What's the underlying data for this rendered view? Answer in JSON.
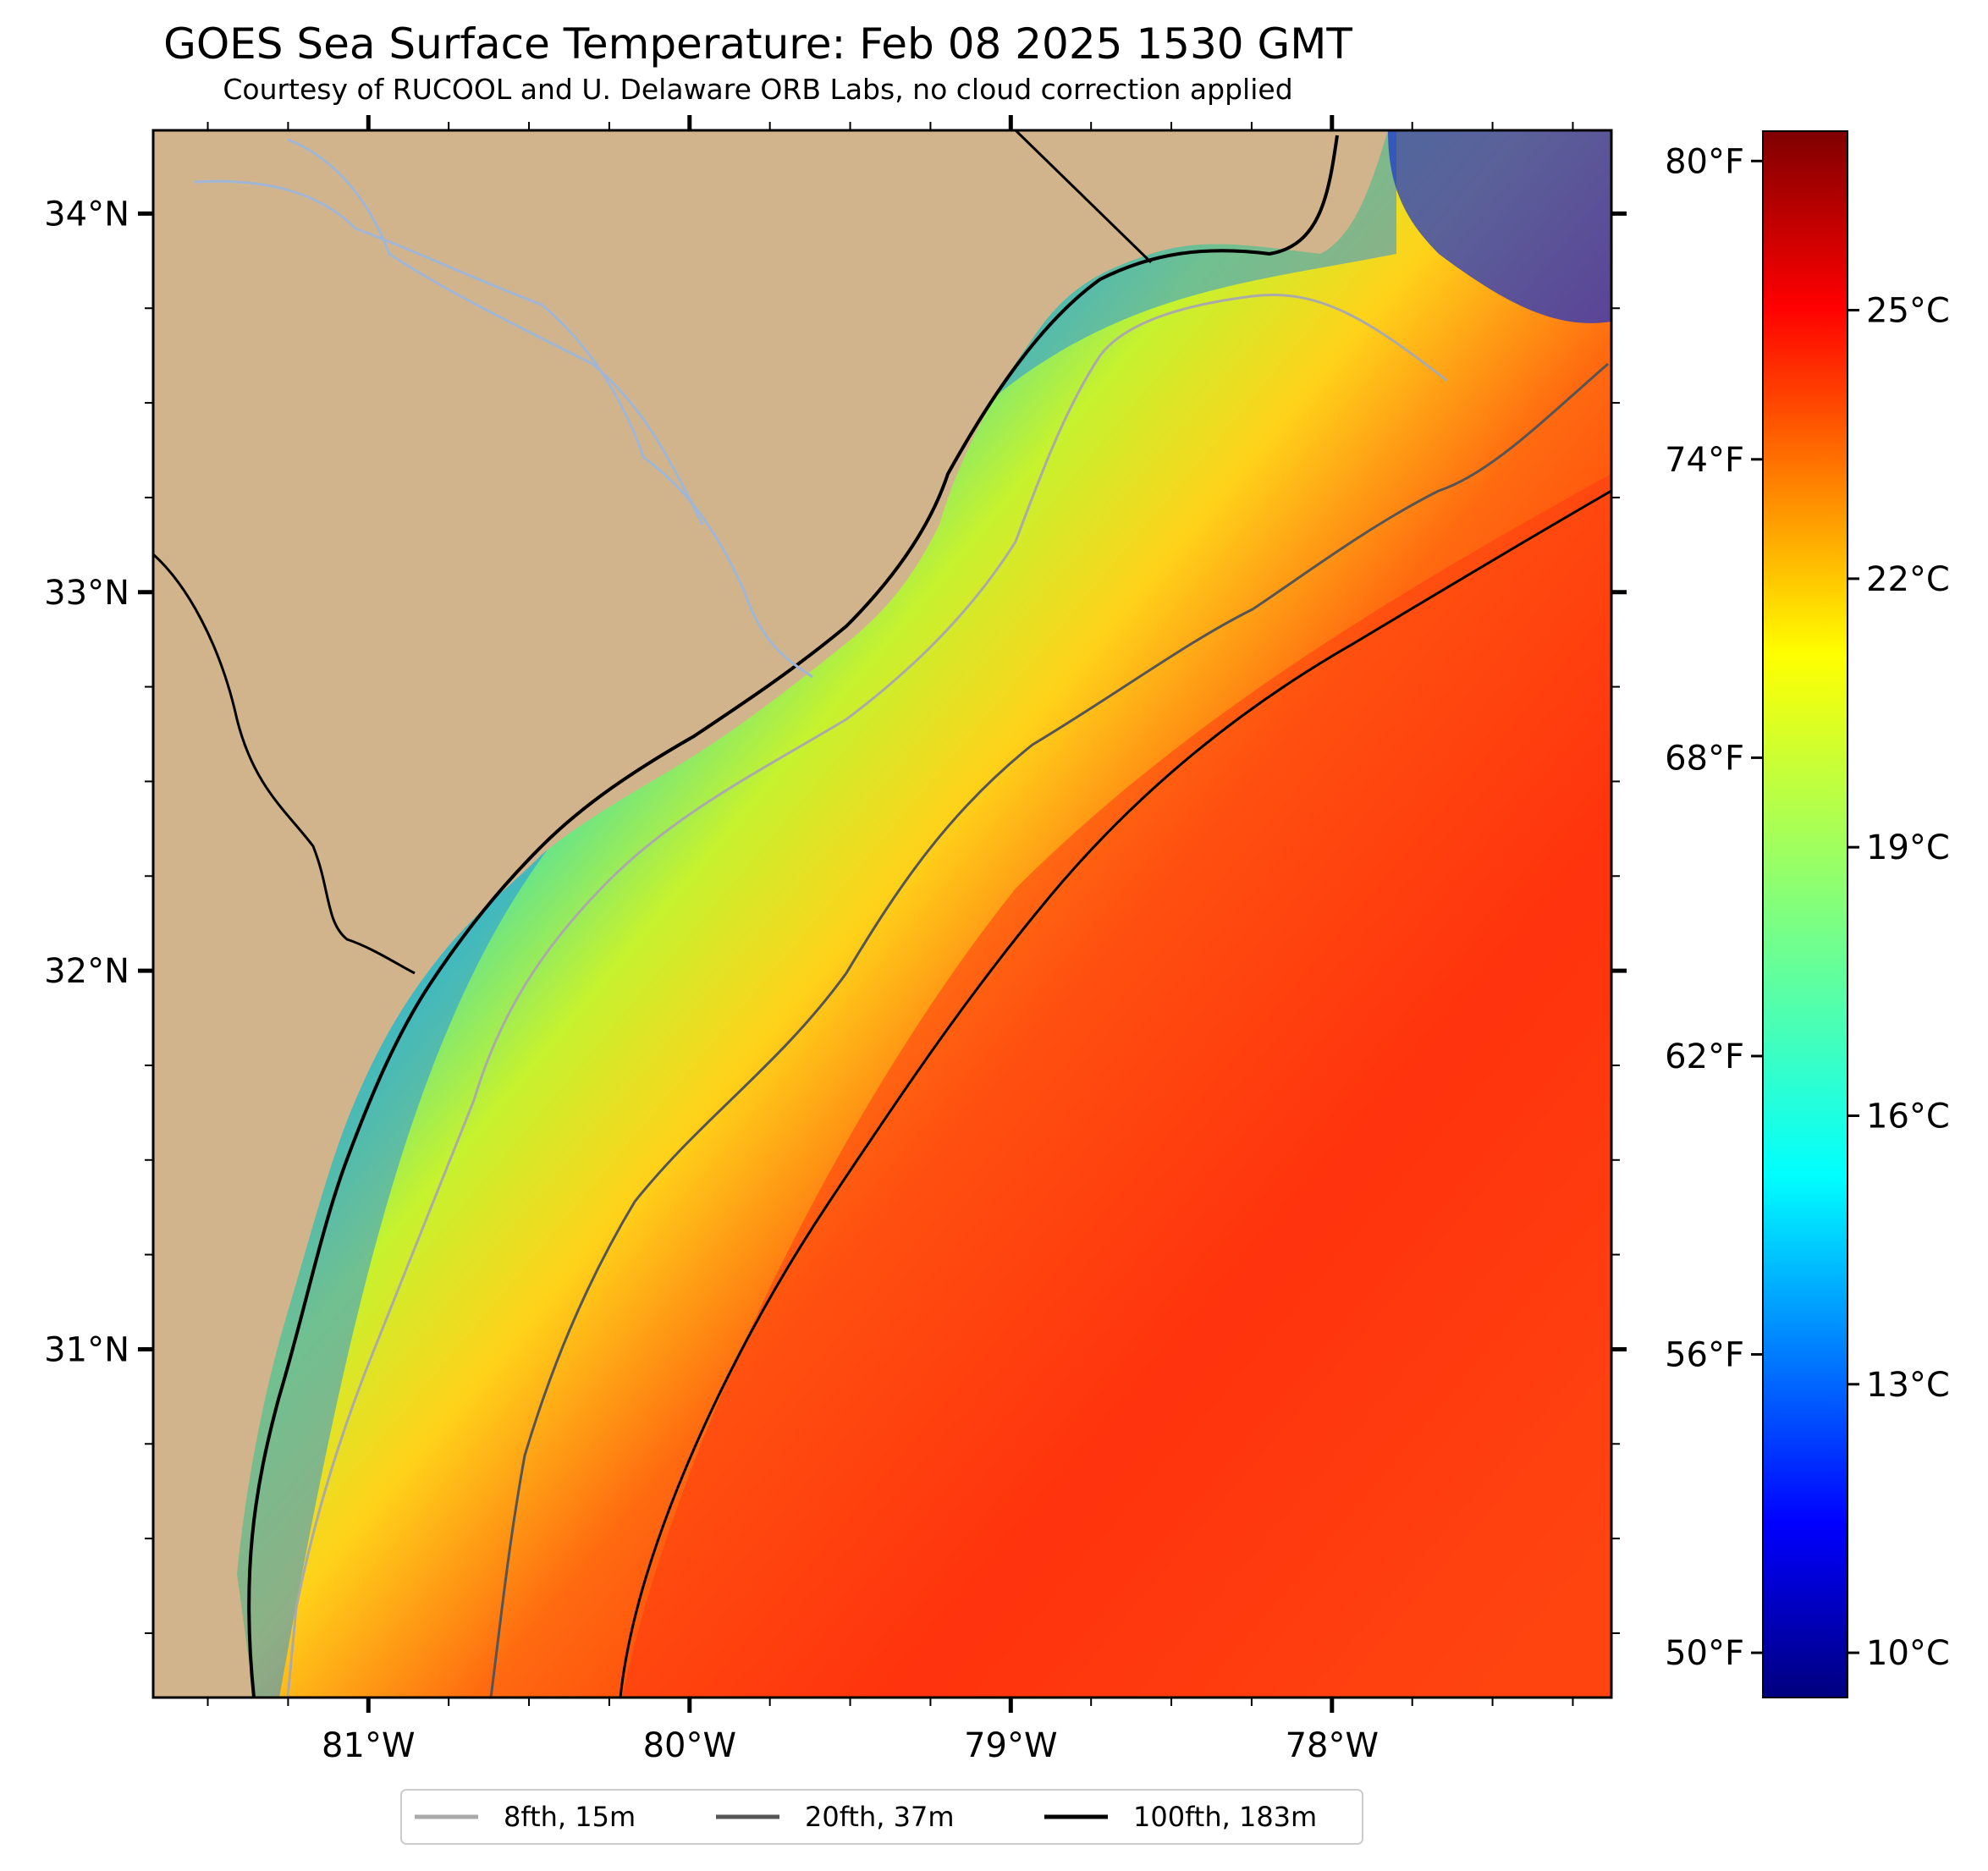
{
  "title": "GOES Sea Surface Temperature: Feb 08 2025 1530 GMT",
  "subtitle": "Courtesy of RUCOOL and U. Delaware ORB Labs, no cloud correction applied",
  "map": {
    "extent": {
      "lon_min": -81.67,
      "lon_max": -77.13,
      "lat_min": 30.08,
      "lat_max": 34.22
    },
    "lon_ticks": [
      {
        "value": -81,
        "label": "81°W"
      },
      {
        "value": -80,
        "label": "80°W"
      },
      {
        "value": -79,
        "label": "79°W"
      },
      {
        "value": -78,
        "label": "78°W"
      }
    ],
    "lat_ticks": [
      {
        "value": 34,
        "label": "34°N"
      },
      {
        "value": 33,
        "label": "33°N"
      },
      {
        "value": 32,
        "label": "32°N"
      },
      {
        "value": 31,
        "label": "31°N"
      }
    ],
    "land_color": "#d2b48c",
    "colormap": "jet"
  },
  "colorbar": {
    "range_c": [
      9.5,
      27.0
    ],
    "celsius_ticks": [
      {
        "value": 25,
        "label": "25°C"
      },
      {
        "value": 22,
        "label": "22°C"
      },
      {
        "value": 19,
        "label": "19°C"
      },
      {
        "value": 16,
        "label": "16°C"
      },
      {
        "value": 13,
        "label": "13°C"
      },
      {
        "value": 10,
        "label": "10°C"
      }
    ],
    "fahrenheit_ticks": [
      {
        "value": 80,
        "label": "80°F"
      },
      {
        "value": 74,
        "label": "74°F"
      },
      {
        "value": 68,
        "label": "68°F"
      },
      {
        "value": 62,
        "label": "62°F"
      },
      {
        "value": 56,
        "label": "56°F"
      },
      {
        "value": 50,
        "label": "50°F"
      }
    ]
  },
  "legend": [
    {
      "label": "8fth, 15m",
      "color": "#aaaaaa"
    },
    {
      "label": "20fth, 37m",
      "color": "#555555"
    },
    {
      "label": "100fth, 183m",
      "color": "#000000"
    }
  ]
}
